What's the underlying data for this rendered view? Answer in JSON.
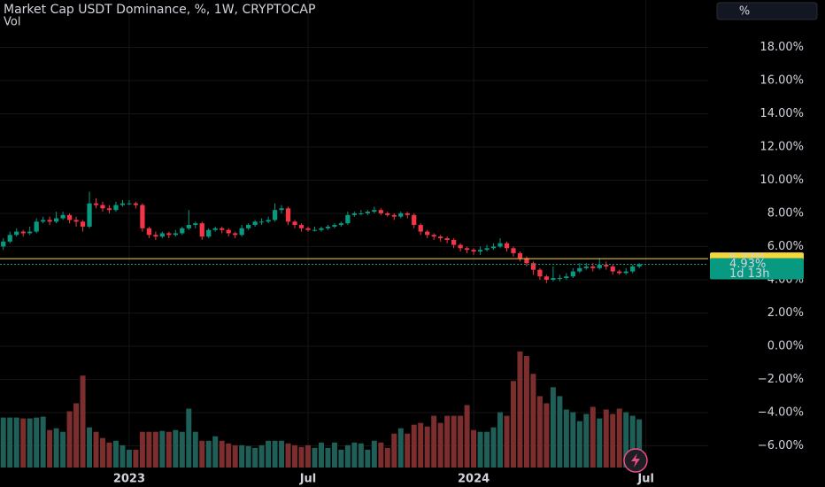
{
  "chart_data": {
    "type": "candlestick",
    "title": "Market Cap USDT Dominance, %, 1W, CRYPTOCAP",
    "volume_label": "Vol",
    "scale_button": "%",
    "up_color": "#089981",
    "down_color": "#f23645",
    "volume_up_color": "#1f5f57",
    "volume_down_color": "#7c2d2d",
    "grid": true,
    "xlim": [
      -0.5,
      106.4
    ],
    "ylim": [
      -7.31,
      20.85
    ],
    "xticks": [
      {
        "value": 19,
        "label": "2023"
      },
      {
        "value": 46,
        "label": "Jul"
      },
      {
        "value": 71,
        "label": "2024"
      },
      {
        "value": 97,
        "label": "Jul"
      }
    ],
    "yticks": [
      {
        "value": 18,
        "label": "18.00%"
      },
      {
        "value": 16,
        "label": "16.00%"
      },
      {
        "value": 14,
        "label": "14.00%"
      },
      {
        "value": 12,
        "label": "12.00%"
      },
      {
        "value": 10,
        "label": "10.00%"
      },
      {
        "value": 8,
        "label": "8.00%"
      },
      {
        "value": 6,
        "label": "6.00%"
      },
      {
        "value": 4,
        "label": "4.00%"
      },
      {
        "value": 2,
        "label": "2.00%"
      },
      {
        "value": 0,
        "label": "0.00%"
      },
      {
        "value": -2,
        "label": "−2.00%"
      },
      {
        "value": -4,
        "label": "−4.00%"
      },
      {
        "value": -6,
        "label": "−6.00%"
      }
    ],
    "price_lines": [
      {
        "value": 5.27,
        "label": "5.27%",
        "color": "#f7d63a"
      },
      {
        "value": 4.93,
        "label": "4.93%",
        "countdown": "1d 13h",
        "color": "#089981"
      }
    ],
    "open": [
      6.0,
      6.3,
      6.7,
      6.9,
      6.8,
      6.9,
      7.5,
      7.6,
      7.5,
      7.7,
      7.9,
      7.6,
      7.5,
      7.2,
      8.6,
      8.5,
      8.3,
      8.2,
      8.5,
      8.6,
      8.6,
      8.5,
      7.1,
      6.7,
      6.6,
      6.8,
      6.7,
      6.8,
      7.1,
      7.3,
      7.4,
      6.6,
      7.0,
      7.1,
      7.0,
      6.8,
      6.7,
      7.1,
      7.3,
      7.5,
      7.5,
      7.6,
      8.2,
      8.3,
      7.5,
      7.3,
      7.1,
      7.0,
      7.0,
      7.1,
      7.2,
      7.3,
      7.4,
      7.9,
      8.0,
      8.0,
      8.1,
      8.2,
      8.0,
      7.9,
      7.8,
      8.0,
      7.9,
      7.3,
      6.9,
      6.7,
      6.6,
      6.5,
      6.4,
      6.1,
      5.9,
      5.8,
      5.7,
      5.8,
      5.9,
      6.0,
      6.2,
      5.9,
      5.6,
      5.3,
      5.0,
      4.6,
      4.2,
      4.0,
      4.1,
      4.1,
      4.2,
      4.5,
      4.7,
      4.8,
      4.7,
      4.9,
      4.8,
      4.5,
      4.4,
      4.5,
      4.8
    ],
    "high": [
      6.5,
      6.9,
      7.1,
      7.0,
      7.2,
      7.7,
      7.8,
      7.8,
      8.1,
      8.1,
      8.0,
      7.8,
      7.6,
      9.3,
      8.9,
      8.7,
      8.5,
      8.7,
      8.8,
      8.8,
      8.7,
      8.6,
      7.2,
      6.9,
      6.9,
      6.9,
      7.0,
      7.2,
      8.2,
      7.5,
      7.5,
      7.1,
      7.2,
      7.2,
      7.1,
      6.9,
      7.3,
      7.4,
      7.6,
      7.7,
      7.8,
      8.6,
      8.5,
      8.4,
      7.6,
      7.4,
      7.2,
      7.2,
      7.2,
      7.3,
      7.4,
      7.5,
      8.1,
      8.1,
      8.2,
      8.2,
      8.4,
      8.3,
      8.1,
      8.0,
      8.1,
      8.1,
      8.0,
      7.4,
      7.0,
      6.8,
      6.7,
      6.6,
      6.5,
      6.2,
      6.0,
      5.9,
      6.0,
      6.1,
      6.2,
      6.5,
      6.3,
      6.0,
      5.7,
      5.4,
      5.1,
      4.7,
      4.3,
      4.8,
      4.3,
      4.4,
      4.7,
      5.0,
      5.0,
      5.0,
      5.3,
      5.1,
      4.9,
      4.6,
      4.7,
      4.9,
      5.0
    ],
    "low": [
      5.8,
      6.2,
      6.6,
      6.6,
      6.7,
      6.8,
      7.4,
      7.3,
      7.4,
      7.6,
      7.4,
      7.2,
      6.9,
      7.1,
      8.3,
      8.1,
      8.0,
      8.1,
      8.4,
      8.5,
      8.3,
      6.9,
      6.5,
      6.4,
      6.5,
      6.5,
      6.6,
      6.7,
      7.0,
      7.1,
      6.4,
      6.5,
      6.9,
      6.8,
      6.6,
      6.5,
      6.6,
      7.0,
      7.2,
      7.3,
      7.4,
      7.5,
      8.0,
      7.3,
      7.1,
      6.9,
      6.9,
      6.9,
      6.9,
      7.0,
      7.1,
      7.2,
      7.3,
      7.8,
      7.9,
      7.9,
      8.0,
      7.9,
      7.8,
      7.6,
      7.7,
      7.7,
      7.1,
      6.7,
      6.5,
      6.4,
      6.3,
      6.2,
      5.9,
      5.7,
      5.6,
      5.5,
      5.5,
      5.7,
      5.8,
      5.9,
      5.7,
      5.4,
      5.1,
      4.8,
      4.3,
      4.0,
      3.8,
      3.9,
      3.9,
      4.0,
      4.1,
      4.4,
      4.6,
      4.5,
      4.6,
      4.6,
      4.3,
      4.3,
      4.3,
      4.4,
      4.7
    ],
    "close": [
      6.3,
      6.7,
      6.9,
      6.8,
      6.9,
      7.5,
      7.6,
      7.5,
      7.7,
      7.9,
      7.6,
      7.5,
      7.2,
      8.6,
      8.5,
      8.3,
      8.2,
      8.5,
      8.6,
      8.6,
      8.5,
      7.1,
      6.7,
      6.6,
      6.8,
      6.7,
      6.8,
      7.1,
      7.3,
      7.4,
      6.6,
      7.0,
      7.1,
      7.0,
      6.8,
      6.7,
      7.1,
      7.3,
      7.5,
      7.5,
      7.6,
      8.2,
      8.3,
      7.5,
      7.3,
      7.1,
      7.0,
      7.0,
      7.1,
      7.2,
      7.3,
      7.4,
      7.9,
      8.0,
      8.0,
      8.1,
      8.2,
      8.0,
      7.9,
      7.8,
      8.0,
      7.9,
      7.3,
      6.9,
      6.7,
      6.6,
      6.5,
      6.4,
      6.1,
      5.9,
      5.8,
      5.7,
      5.8,
      5.9,
      6.0,
      6.2,
      5.9,
      5.6,
      5.3,
      5.0,
      4.6,
      4.2,
      4.0,
      4.1,
      4.1,
      4.2,
      4.5,
      4.7,
      4.8,
      4.7,
      4.9,
      4.8,
      4.5,
      4.4,
      4.5,
      4.8,
      4.93
    ],
    "volume": [
      56,
      56,
      56,
      55,
      55,
      56,
      57,
      42,
      44,
      40,
      63,
      72,
      103,
      45,
      40,
      33,
      28,
      30,
      25,
      20,
      20,
      40,
      40,
      40,
      41,
      40,
      42,
      40,
      66,
      40,
      30,
      30,
      35,
      30,
      27,
      25,
      25,
      24,
      22,
      25,
      30,
      30,
      30,
      27,
      25,
      23,
      25,
      22,
      28,
      22,
      28,
      20,
      25,
      28,
      27,
      20,
      30,
      28,
      22,
      38,
      44,
      38,
      48,
      50,
      46,
      58,
      50,
      58,
      58,
      58,
      70,
      42,
      40,
      40,
      45,
      62,
      58,
      97,
      130,
      125,
      105,
      80,
      72,
      90,
      80,
      65,
      62,
      52,
      60,
      68,
      55,
      65,
      60,
      66,
      62,
      58,
      54
    ]
  }
}
